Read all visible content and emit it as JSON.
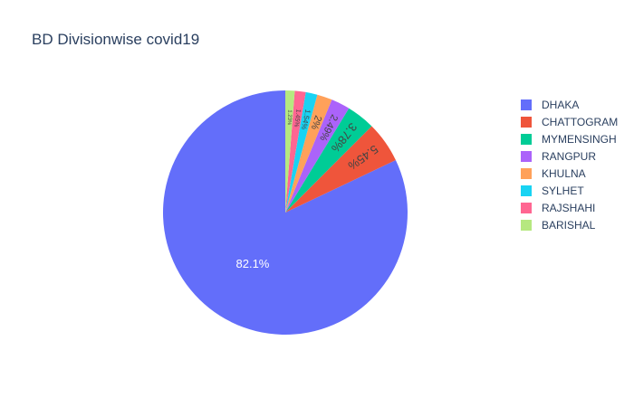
{
  "chart_data": {
    "type": "pie",
    "title": "BD Divisionwise covid19",
    "legend_position": "right",
    "slices": [
      {
        "name": "DHAKA",
        "value": 82.1,
        "label": "82.1%",
        "color": "#636efa"
      },
      {
        "name": "CHATTOGRAM",
        "value": 5.45,
        "label": "5.45%",
        "color": "#ef553b"
      },
      {
        "name": "MYMENSINGH",
        "value": 3.78,
        "label": "3.78%",
        "color": "#00cc96"
      },
      {
        "name": "RANGPUR",
        "value": 2.49,
        "label": "2.49%",
        "color": "#ab63fa"
      },
      {
        "name": "KHULNA",
        "value": 2.0,
        "label": "2%",
        "color": "#ffa15a"
      },
      {
        "name": "SYLHET",
        "value": 1.54,
        "label": "1.54%",
        "color": "#19d3f3"
      },
      {
        "name": "RAJSHAHI",
        "value": 1.45,
        "label": "1.45%",
        "color": "#ff6692"
      },
      {
        "name": "BARISHAL",
        "value": 1.23,
        "label": "1.23%",
        "color": "#b6e880"
      }
    ]
  }
}
